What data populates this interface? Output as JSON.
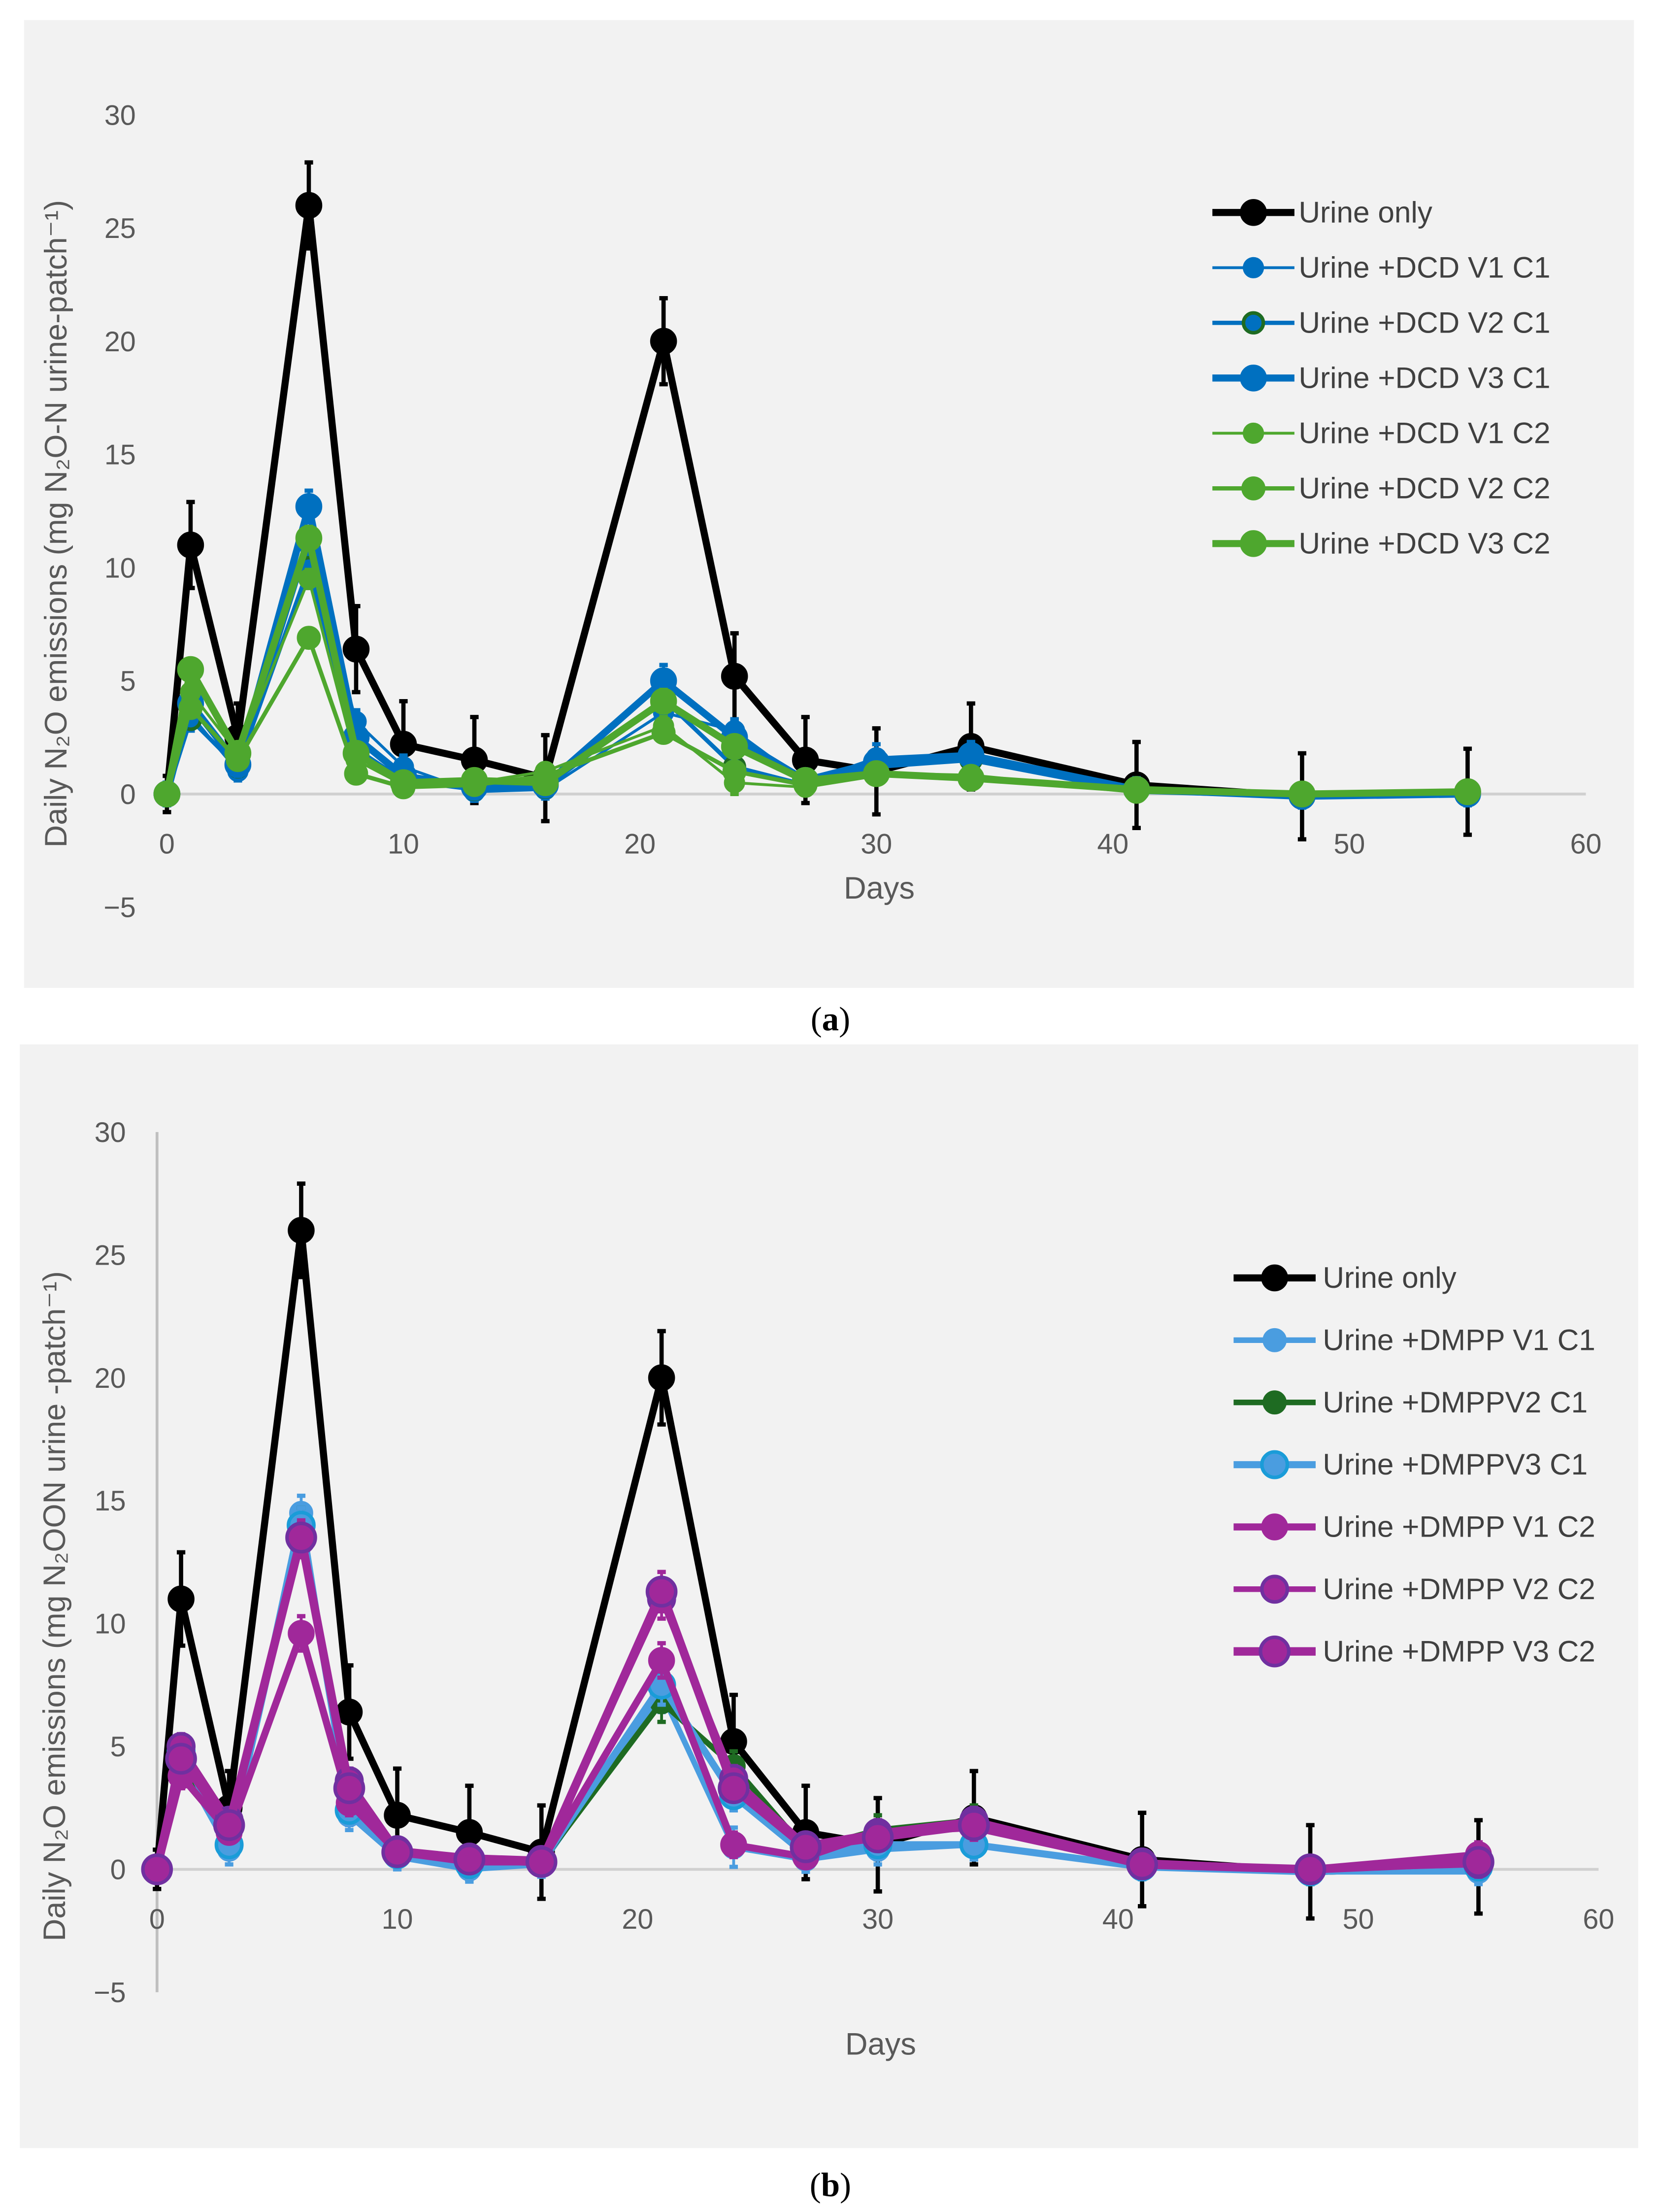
{
  "chart_data": [
    {
      "type": "line",
      "panel_label": "a",
      "caption_open": "(",
      "caption_letter": "a",
      "caption_close": ")",
      "xlabel": "Days",
      "ylabel": "Daily N₂O emissions (mg N₂O-N urine-patch⁻¹)",
      "xlim": [
        0,
        60
      ],
      "ylim": [
        -5,
        30
      ],
      "xticks": [
        "0",
        "10",
        "20",
        "30",
        "40",
        "50",
        "60"
      ],
      "yticks": [
        "−5",
        "0",
        "5",
        "10",
        "15",
        "20",
        "25",
        "30"
      ],
      "grid": false,
      "legend_position": "right",
      "x": [
        0,
        1,
        3,
        6,
        8,
        10,
        13,
        16,
        21,
        24,
        27,
        30,
        34,
        41,
        48,
        55
      ],
      "series": [
        {
          "name": "Urine only",
          "color": "#000000",
          "width": 5,
          "marker": 9,
          "values": [
            0,
            11,
            2.5,
            26,
            6.4,
            2.2,
            1.5,
            0.7,
            20,
            5.2,
            1.5,
            1.0,
            2.1,
            0.4,
            -0.1,
            0.1
          ],
          "error": [
            0.8,
            1.9,
            1.5,
            1.9,
            1.9,
            1.9,
            1.9,
            1.9,
            1.9,
            1.9,
            1.9,
            1.9,
            1.9,
            1.9,
            1.9,
            1.9
          ]
        },
        {
          "name": "Urine +DCD V1 C1",
          "color": "#0070c0",
          "width": 2,
          "marker": 7,
          "values": [
            0,
            3.5,
            1.0,
            11,
            3.2,
            1.2,
            0.1,
            0.2,
            3.6,
            2.8,
            0.5,
            1.6,
            1.8,
            0.2,
            -0.1,
            0.0
          ],
          "error": [
            0.5,
            0.5,
            0.4,
            0.5,
            0.5,
            0.5,
            0.4,
            0.4,
            0.6,
            0.5,
            0.4,
            0.6,
            0.5,
            0.5,
            0.5,
            0.5
          ]
        },
        {
          "name": "Urine +DCD V2 C1",
          "color": "#0070c0",
          "edge": "#1e6b22",
          "width": 3,
          "marker": 7,
          "values": [
            0,
            3.3,
            1.2,
            10,
            2.0,
            0.6,
            0.2,
            0.3,
            4.2,
            1.2,
            0.4,
            1.2,
            1.5,
            0.1,
            -0.1,
            0
          ],
          "error": [
            0.4,
            0.5,
            0.4,
            0.5,
            0.4,
            0.4,
            0.4,
            0.4,
            0.5,
            0.4,
            0.3,
            0.4,
            0.4,
            0.3,
            0.4,
            0.4
          ]
        },
        {
          "name": "Urine +DCD V3 C1",
          "color": "#0070c0",
          "width": 5,
          "marker": 9,
          "values": [
            0,
            4.0,
            1.3,
            12.7,
            2.5,
            0.8,
            0.3,
            0.4,
            5.0,
            2.5,
            0.6,
            1.4,
            1.7,
            0.2,
            -0.1,
            0.0
          ],
          "error": [
            0.5,
            0.5,
            0.5,
            0.7,
            0.5,
            0.5,
            0.4,
            0.4,
            0.7,
            0.5,
            0.4,
            0.5,
            0.5,
            0.4,
            0.4,
            0.4
          ]
        },
        {
          "name": "Urine +DCD V1 C2",
          "color": "#4ea72e",
          "width": 2,
          "marker": 7,
          "values": [
            0,
            4.5,
            1.8,
            9.5,
            1.5,
            0.4,
            0.5,
            1.0,
            3.0,
            0.5,
            0.3,
            0.8,
            0.7,
            0.1,
            0,
            0.1
          ],
          "error": [
            0.3,
            0.4,
            0.3,
            0.4,
            0.3,
            0.3,
            0.3,
            0.3,
            0.4,
            0.5,
            0.3,
            0.3,
            0.3,
            0.3,
            0.3,
            0.3
          ]
        },
        {
          "name": "Urine +DCD V2 C2",
          "color": "#4ea72e",
          "width": 3,
          "marker": 8,
          "values": [
            0,
            3.8,
            1.5,
            6.9,
            0.9,
            0.3,
            0.4,
            0.8,
            2.7,
            1.0,
            0.4,
            0.9,
            0.8,
            0.1,
            0,
            0.1
          ],
          "error": [
            0.3,
            0.4,
            0.3,
            0.4,
            0.3,
            0.3,
            0.3,
            0.3,
            0.4,
            0.4,
            0.3,
            0.3,
            0.3,
            0.3,
            0.3,
            0.3
          ]
        },
        {
          "name": "Urine +DCD V3 C2",
          "color": "#4ea72e",
          "width": 5,
          "marker": 9,
          "values": [
            0,
            5.5,
            1.8,
            11.3,
            1.8,
            0.5,
            0.6,
            0.5,
            4.1,
            2.1,
            0.6,
            0.9,
            0.7,
            0.2,
            0,
            0.1
          ],
          "error": [
            0.3,
            0.4,
            0.3,
            0.5,
            0.4,
            0.3,
            0.3,
            0.3,
            0.5,
            0.4,
            0.3,
            0.3,
            0.3,
            0.3,
            0.3,
            0.3
          ]
        }
      ]
    },
    {
      "type": "line",
      "panel_label": "b",
      "caption_open": "(",
      "caption_letter": "b",
      "caption_close": ")",
      "xlabel": "Days",
      "ylabel": "Daily N₂O emissions (mg N₂OON urine -patch⁻¹)",
      "xlim": [
        0,
        60
      ],
      "ylim": [
        -5,
        30
      ],
      "xticks": [
        "0",
        "10",
        "20",
        "30",
        "40",
        "50",
        "60"
      ],
      "yticks": [
        "−5",
        "0",
        "5",
        "10",
        "15",
        "20",
        "25",
        "30"
      ],
      "grid": false,
      "legend_position": "right",
      "x": [
        0,
        1,
        3,
        6,
        8,
        10,
        13,
        16,
        21,
        24,
        27,
        30,
        34,
        41,
        48,
        55
      ],
      "series": [
        {
          "name": "Urine only",
          "color": "#000000",
          "width": 5,
          "marker": 9,
          "values": [
            0,
            11,
            2.5,
            26,
            6.4,
            2.2,
            1.5,
            0.7,
            20,
            5.2,
            1.5,
            1.0,
            2.1,
            0.4,
            -0.1,
            0.1
          ],
          "error": [
            0.8,
            1.9,
            1.5,
            1.9,
            1.9,
            1.9,
            1.9,
            1.9,
            1.9,
            1.9,
            1.9,
            1.9,
            1.9,
            1.9,
            1.9,
            1.9
          ]
        },
        {
          "name": "Urine +DMPP V1 C1",
          "color": "#4a9de0",
          "width": 4,
          "marker": 8,
          "values": [
            0,
            4.3,
            0.8,
            14.5,
            2.2,
            0.5,
            0.0,
            0.2,
            7.2,
            0.9,
            0.4,
            0.8,
            1.0,
            0.1,
            -0.1,
            -0.1
          ],
          "error": [
            0.5,
            0.6,
            0.6,
            0.7,
            0.6,
            0.5,
            0.5,
            0.5,
            0.8,
            0.8,
            0.5,
            0.6,
            0.6,
            0.5,
            0.5,
            0.5
          ]
        },
        {
          "name": "Urine +DMPPV2 C1",
          "color": "#1e6b22",
          "width": 4,
          "marker": 8,
          "values": [
            0,
            4.5,
            1.2,
            14,
            2.5,
            0.7,
            0.2,
            0.3,
            6.8,
            4.2,
            0.8,
            1.6,
            2.0,
            0.2,
            -0.1,
            0.1
          ],
          "error": [
            0.5,
            0.6,
            0.5,
            0.7,
            0.6,
            0.5,
            0.5,
            0.5,
            0.8,
            0.6,
            0.5,
            0.6,
            0.6,
            0.5,
            0.5,
            0.5
          ]
        },
        {
          "name": "Urine +DMPPV3 C1",
          "color": "#4a9de0",
          "edge": "#1a9cd8",
          "width": 5,
          "marker": 9,
          "values": [
            0,
            4.8,
            1.0,
            14,
            2.4,
            0.6,
            0.2,
            0.3,
            7.5,
            3.0,
            0.6,
            1.0,
            1.0,
            0.1,
            -0.1,
            0.1
          ],
          "error": [
            0.5,
            0.6,
            0.5,
            0.7,
            0.6,
            0.5,
            0.5,
            0.5,
            0.8,
            0.6,
            0.5,
            0.6,
            0.6,
            0.5,
            0.5,
            0.5
          ]
        },
        {
          "name": "Urine +DMPP V1 C2",
          "color": "#a0289a",
          "width": 5,
          "marker": 9,
          "values": [
            0,
            3.8,
            1.5,
            9.6,
            2.7,
            0.7,
            0.3,
            0.3,
            8.5,
            1.0,
            0.5,
            1.5,
            1.7,
            0.2,
            0,
            0.6
          ],
          "error": [
            0.4,
            0.5,
            0.4,
            0.7,
            0.5,
            0.4,
            0.4,
            0.4,
            0.7,
            0.5,
            0.4,
            0.5,
            0.5,
            0.4,
            0.5,
            0.5
          ]
        },
        {
          "name": "Urine +DMPP V2 C2",
          "color": "#a0289a",
          "edge": "#7030a0",
          "width": 4,
          "marker": 9,
          "values": [
            0,
            5.0,
            2.0,
            13.4,
            3.6,
            0.8,
            0.5,
            0.4,
            11.0,
            3.7,
            1.0,
            1.5,
            2.0,
            0.3,
            0,
            0.2
          ],
          "error": [
            0.4,
            0.5,
            0.4,
            0.7,
            0.5,
            0.4,
            0.4,
            0.4,
            0.8,
            0.5,
            0.4,
            0.5,
            0.5,
            0.4,
            0.5,
            0.5
          ]
        },
        {
          "name": "Urine +DMPP V3 C2",
          "color": "#a0289a",
          "edge": "#7030a0",
          "width": 6,
          "marker": 10,
          "values": [
            0,
            4.5,
            1.8,
            13.5,
            3.3,
            0.7,
            0.4,
            0.3,
            11.3,
            3.3,
            0.9,
            1.3,
            1.8,
            0.2,
            0,
            0.3
          ],
          "error": [
            0.4,
            0.5,
            0.4,
            0.7,
            0.5,
            0.4,
            0.4,
            0.4,
            0.8,
            0.5,
            0.4,
            0.5,
            0.5,
            0.4,
            0.5,
            0.5
          ]
        }
      ]
    }
  ]
}
